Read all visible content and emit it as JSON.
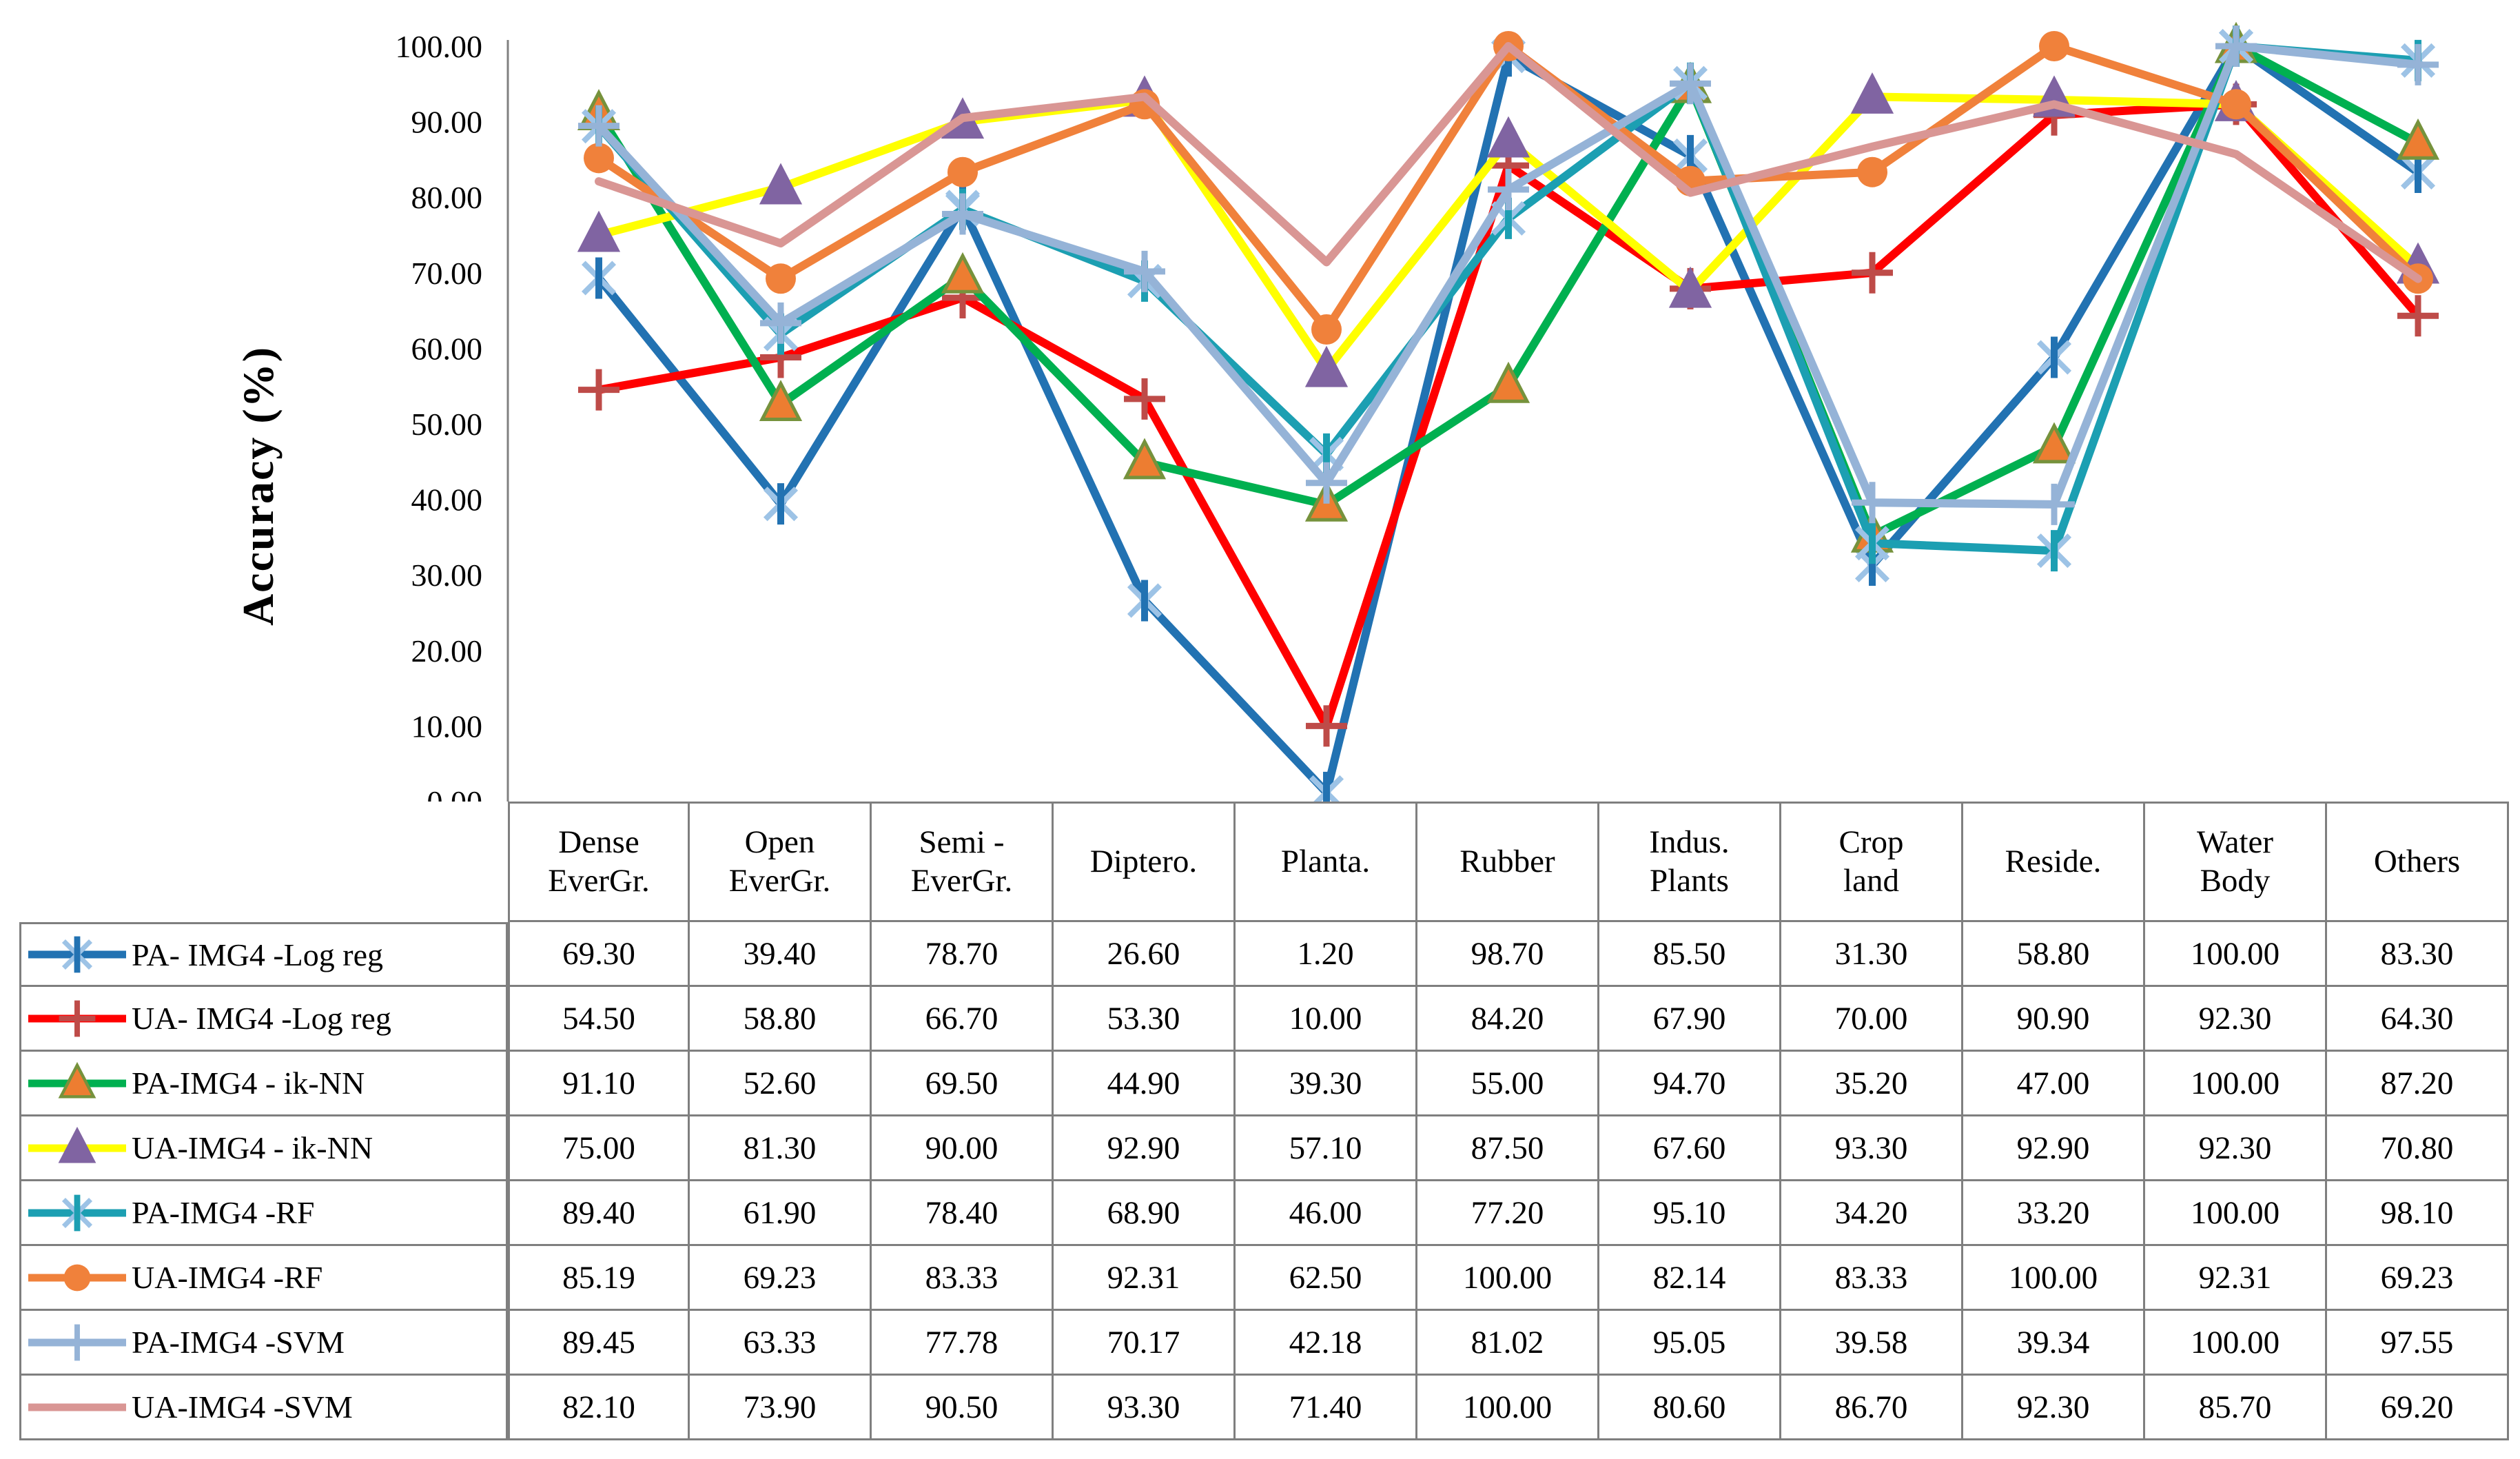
{
  "chart_data": {
    "type": "line",
    "title": "",
    "xlabel": "",
    "ylabel": "Accuracy (%)",
    "ylim": [
      0,
      100
    ],
    "ytick_step": 10,
    "ytick_decimals": 2,
    "grid": false,
    "legend_position": "data-table-left-column",
    "axis_color": "#808080",
    "table_border_color": "#7F7F7F",
    "categories": [
      "Dense\nEverGr.",
      "Open\nEverGr.",
      "Semi -\nEverGr.",
      "Diptero.",
      "Planta.",
      "Rubber",
      "Indus.\nPlants",
      "Crop\nland",
      "Reside.",
      "Water\nBody",
      "Others"
    ],
    "series": [
      {
        "name": "PA- IMG4 -Log reg",
        "color": "#2272B2",
        "marker": "asterisk",
        "marker_color": "#2272B2",
        "marker_alt_color": "#9DC3E6",
        "values": [
          69.3,
          39.4,
          78.7,
          26.6,
          1.2,
          98.7,
          85.5,
          31.3,
          58.8,
          100.0,
          83.3
        ]
      },
      {
        "name": "UA- IMG4 -Log reg",
        "color": "#FF0000",
        "marker": "plus",
        "marker_color": "#BE4B48",
        "values": [
          54.5,
          58.8,
          66.7,
          53.3,
          10.0,
          84.2,
          67.9,
          70.0,
          90.9,
          92.3,
          64.3
        ]
      },
      {
        "name": "PA-IMG4 - ik-NN",
        "color": "#00B050",
        "marker": "triangle",
        "marker_color": "#ED7D31",
        "marker_stroke": "#76923C",
        "values": [
          91.1,
          52.6,
          69.5,
          44.9,
          39.3,
          55.0,
          94.7,
          35.2,
          47.0,
          100.0,
          87.2
        ]
      },
      {
        "name": "UA-IMG4 - ik-NN",
        "color": "#FFFF00",
        "marker": "triangle",
        "marker_color": "#8064A2",
        "marker_stroke": "#8064A2",
        "values": [
          75.0,
          81.3,
          90.0,
          92.9,
          57.1,
          87.5,
          67.6,
          93.3,
          92.9,
          92.3,
          70.8
        ]
      },
      {
        "name": "PA-IMG4 -RF",
        "color": "#1C9FB2",
        "marker": "asterisk",
        "marker_color": "#1C9FB2",
        "marker_alt_color": "#9DC3E6",
        "values": [
          89.4,
          61.9,
          78.4,
          68.9,
          46.0,
          77.2,
          95.1,
          34.2,
          33.2,
          100.0,
          98.1
        ]
      },
      {
        "name": "UA-IMG4 -RF",
        "color": "#F0813B",
        "marker": "circle",
        "marker_color": "#F0813B",
        "values": [
          85.19,
          69.23,
          83.33,
          92.31,
          62.5,
          100.0,
          82.14,
          83.33,
          100.0,
          92.31,
          69.23
        ]
      },
      {
        "name": "PA-IMG4 -SVM",
        "color": "#95B3D7",
        "marker": "plus",
        "marker_color": "#95B3D7",
        "values": [
          89.45,
          63.33,
          77.78,
          70.17,
          42.18,
          81.02,
          95.05,
          39.58,
          39.34,
          100.0,
          97.55
        ]
      },
      {
        "name": "UA-IMG4 -SVM",
        "color": "#D99694",
        "marker": "none",
        "values": [
          82.1,
          73.9,
          90.5,
          93.3,
          71.4,
          100.0,
          80.6,
          86.7,
          92.3,
          85.7,
          69.2
        ]
      }
    ]
  }
}
